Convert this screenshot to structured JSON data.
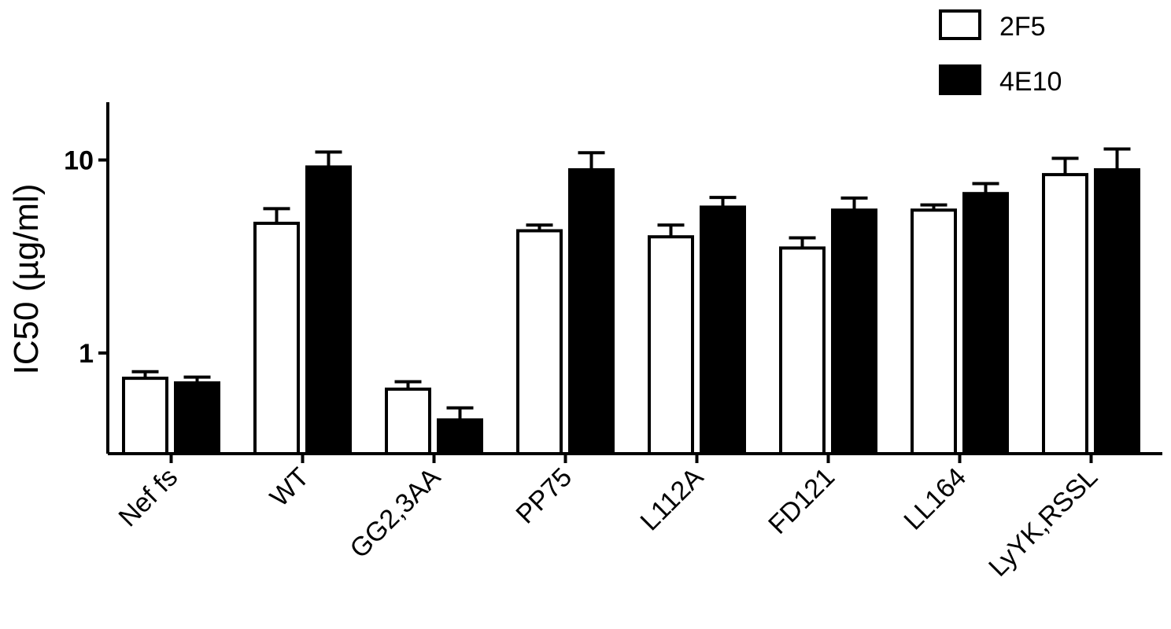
{
  "chart_data": {
    "type": "bar",
    "yscale": "log",
    "ylim": [
      0.3,
      20
    ],
    "yticks": [
      1,
      10
    ],
    "ytick_labels": [
      "1",
      "10"
    ],
    "ylabel": "IC50 (µg/ml)",
    "xlabel": "",
    "title": "",
    "grid": false,
    "legend_position": "top-right",
    "categories": [
      "Nef fs",
      "WT",
      "GG2,3AA",
      "PP75",
      "L112A",
      "FD121",
      "LL164",
      "LyYK,RSSL"
    ],
    "series": [
      {
        "name": "2F5",
        "fill": "#ffffff",
        "stroke": "#000000",
        "values": [
          0.74,
          4.7,
          0.65,
          4.3,
          4.0,
          3.5,
          5.5,
          8.4
        ],
        "errors": [
          0.06,
          0.9,
          0.06,
          0.3,
          0.6,
          0.45,
          0.35,
          1.8
        ]
      },
      {
        "name": "4E10",
        "fill": "#000000",
        "stroke": "#000000",
        "values": [
          0.7,
          9.2,
          0.45,
          8.9,
          5.7,
          5.5,
          6.7,
          8.9
        ],
        "errors": [
          0.05,
          1.8,
          0.07,
          2.0,
          0.7,
          0.85,
          0.85,
          2.5
        ]
      }
    ]
  }
}
